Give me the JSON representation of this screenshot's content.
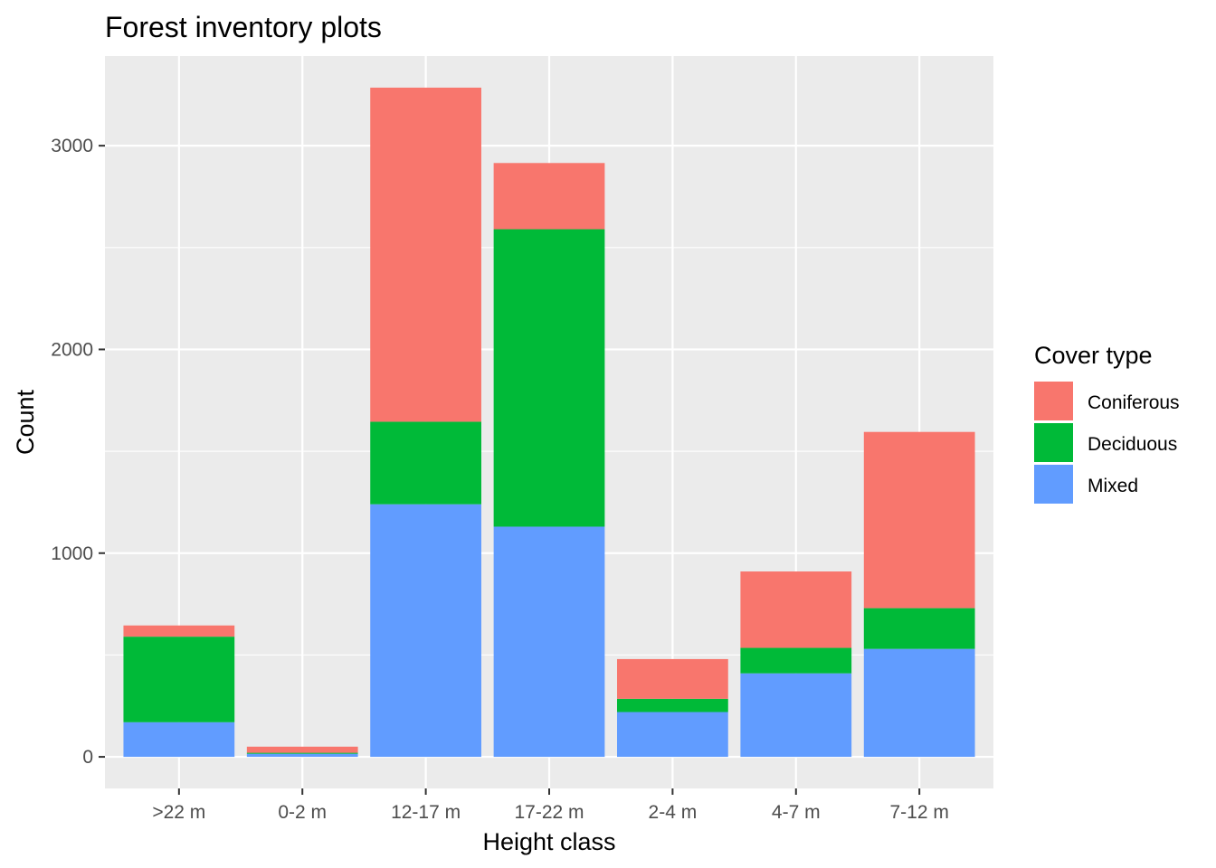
{
  "chart_data": {
    "type": "bar",
    "stacked": true,
    "title": "Forest inventory plots",
    "xlabel": "Height class",
    "ylabel": "Count",
    "categories": [
      ">22 m",
      "0-2 m",
      "12-17 m",
      "17-22 m",
      "2-4 m",
      "4-7 m",
      "7-12 m"
    ],
    "series": [
      {
        "name": "Mixed",
        "color": "#619CFF",
        "values": [
          170,
          15,
          1240,
          1130,
          220,
          410,
          530
        ]
      },
      {
        "name": "Deciduous",
        "color": "#00BA38",
        "values": [
          420,
          5,
          405,
          1460,
          65,
          125,
          200
        ]
      },
      {
        "name": "Coniferous",
        "color": "#F8766D",
        "values": [
          55,
          30,
          1640,
          325,
          195,
          375,
          865
        ]
      }
    ],
    "ylim": [
      -155,
      3440
    ],
    "yticks": [
      0,
      1000,
      2000,
      3000
    ],
    "y_minor_ticks": [
      500,
      1500,
      2500
    ],
    "grid": true,
    "background": "#EBEBEB",
    "legend": {
      "title": "Cover type",
      "position": "right",
      "items": [
        "Coniferous",
        "Deciduous",
        "Mixed"
      ]
    }
  }
}
